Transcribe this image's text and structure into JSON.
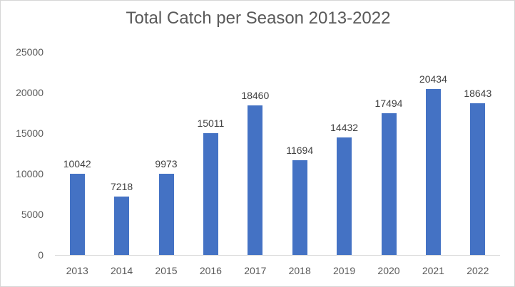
{
  "chart_data": {
    "type": "bar",
    "title": "Total Catch per Season 2013-2022",
    "categories": [
      "2013",
      "2014",
      "2015",
      "2016",
      "2017",
      "2018",
      "2019",
      "2020",
      "2021",
      "2022"
    ],
    "values": [
      10042,
      7218,
      9973,
      15011,
      18460,
      11694,
      14432,
      17494,
      20434,
      18643
    ],
    "xlabel": "",
    "ylabel": "",
    "ylim": [
      0,
      25000
    ],
    "yticks": [
      0,
      5000,
      10000,
      15000,
      20000,
      25000
    ],
    "grid": false,
    "legend": false,
    "data_labels": true,
    "colors": {
      "bar": "#4472c4",
      "axis_line": "#d9d9d9",
      "title_text": "#595959",
      "tick_text": "#595959",
      "data_label_text": "#404040",
      "frame_border": "#d6d6d6"
    }
  }
}
